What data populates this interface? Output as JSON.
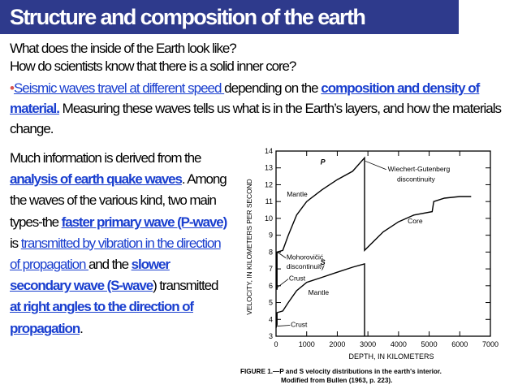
{
  "title": "Structure and composition of the earth",
  "q1": "What does the inside of the Earth look like?",
  "q2": "How do scientists know that there is a solid inner core?",
  "bullet": "•",
  "p_link1": "Seismic waves travel at different speed ",
  "p_text1": "depending on the ",
  "p_link2": "composition and density of material.",
  "p_text2": " Measuring these waves tells  us what is  in  the Earth’s layers, and how the materials change.",
  "l_text1": "Much information is derived from the ",
  "l_link1": "analysis of earth quake waves",
  "l_text2": ". Among the waves of the various kind, two main types-the ",
  "l_link2": "faster primary wave (P-wave)",
  "l_text3": " is ",
  "l_link3": "transmitted by vibration in the direction of propagation ",
  "l_text4": "and the ",
  "l_link4": "slower secondary wave (S-wave",
  "l_text5": ") transmitted ",
  "l_link5": "at right angles to the direction of propagation",
  "l_text6": ".",
  "chart_data": {
    "type": "line",
    "xlabel": "DEPTH, IN  KILOMETERS",
    "ylabel": "VELOCITY, IN KILOMETERS PER SECOND",
    "xlim": [
      0,
      7000
    ],
    "ylim": [
      3,
      14
    ],
    "x_ticks": [
      0,
      1000,
      2000,
      3000,
      4000,
      5000,
      6000,
      7000
    ],
    "y_ticks": [
      3,
      4,
      5,
      6,
      7,
      8,
      9,
      10,
      11,
      12,
      13,
      14
    ],
    "series": [
      {
        "name": "P",
        "points": [
          [
            0,
            5.8
          ],
          [
            33,
            5.8
          ],
          [
            33,
            8
          ],
          [
            220,
            8.1
          ],
          [
            400,
            9.0
          ],
          [
            670,
            10.2
          ],
          [
            1000,
            11.0
          ],
          [
            1500,
            11.7
          ],
          [
            2000,
            12.3
          ],
          [
            2500,
            12.8
          ],
          [
            2890,
            13.6
          ],
          [
            2890,
            8.1
          ],
          [
            3500,
            9.2
          ],
          [
            4000,
            9.8
          ],
          [
            4500,
            10.2
          ],
          [
            5100,
            10.4
          ],
          [
            5150,
            11.0
          ],
          [
            5500,
            11.2
          ],
          [
            6000,
            11.3
          ],
          [
            6371,
            11.3
          ]
        ]
      },
      {
        "name": "S",
        "points": [
          [
            0,
            3.5
          ],
          [
            33,
            3.7
          ],
          [
            33,
            4.4
          ],
          [
            220,
            4.5
          ],
          [
            400,
            5.0
          ],
          [
            670,
            5.7
          ],
          [
            1000,
            6.2
          ],
          [
            1500,
            6.5
          ],
          [
            2000,
            6.8
          ],
          [
            2500,
            7.1
          ],
          [
            2890,
            7.3
          ],
          [
            2890,
            3.0
          ]
        ]
      }
    ],
    "annotations": [
      "P",
      "S",
      "Wiechert-Gutenberg",
      "discontinuity",
      "Mantle",
      "Core",
      "Mohorovičić",
      "discontinuity",
      "Crust",
      "Mantle",
      "Crust"
    ],
    "caption": "FIGURE 1.—P and S velocity distributions in the earth's interior. Modified from Bullen (1963, p. 223)."
  }
}
